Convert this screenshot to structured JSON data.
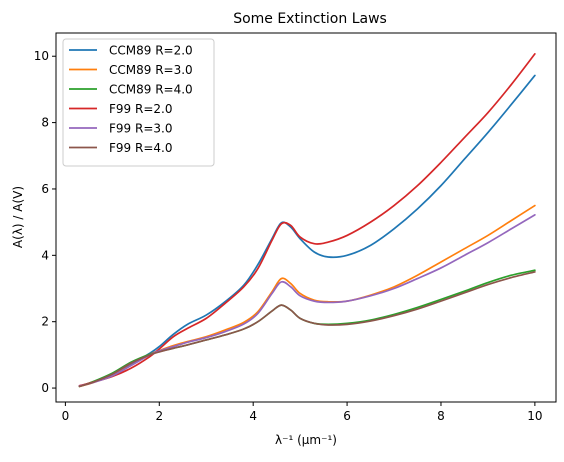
{
  "chart_data": {
    "type": "line",
    "title": "Some Extinction Laws",
    "xlabel": "λ⁻¹ (μm⁻¹)",
    "ylabel": "A(λ) / A(V)",
    "xlim": [
      -0.2,
      10.45
    ],
    "ylim": [
      -0.42,
      10.7
    ],
    "xticks": [
      0,
      2,
      4,
      6,
      8,
      10
    ],
    "yticks": [
      0,
      2,
      4,
      6,
      8,
      10
    ],
    "grid": false,
    "legend_position": "upper-left",
    "x": [
      0.3,
      0.6,
      1.0,
      1.4,
      1.8,
      2.0,
      2.3,
      2.6,
      3.0,
      3.4,
      3.8,
      4.1,
      4.4,
      4.6,
      4.8,
      5.0,
      5.3,
      5.6,
      6.0,
      6.5,
      7.0,
      7.5,
      8.0,
      8.5,
      9.0,
      9.5,
      10.0
    ],
    "series": [
      {
        "name": "CCM89 R=2.0",
        "color": "#1f77b4",
        "values": [
          0.06,
          0.18,
          0.4,
          0.72,
          1.05,
          1.25,
          1.62,
          1.92,
          2.2,
          2.6,
          3.1,
          3.72,
          4.5,
          4.98,
          4.85,
          4.5,
          4.1,
          3.95,
          4.0,
          4.3,
          4.8,
          5.4,
          6.1,
          6.9,
          7.7,
          8.55,
          9.42
        ]
      },
      {
        "name": "CCM89 R=3.0",
        "color": "#ff7f0e",
        "values": [
          0.05,
          0.17,
          0.4,
          0.75,
          1.02,
          1.13,
          1.28,
          1.4,
          1.55,
          1.75,
          1.98,
          2.3,
          2.9,
          3.3,
          3.15,
          2.85,
          2.65,
          2.6,
          2.62,
          2.8,
          3.05,
          3.4,
          3.8,
          4.2,
          4.6,
          5.05,
          5.5
        ]
      },
      {
        "name": "CCM89 R=4.0",
        "color": "#2ca02c",
        "values": [
          0.05,
          0.2,
          0.45,
          0.78,
          1.02,
          1.1,
          1.2,
          1.3,
          1.45,
          1.6,
          1.78,
          2.0,
          2.32,
          2.5,
          2.35,
          2.1,
          1.95,
          1.92,
          1.95,
          2.05,
          2.22,
          2.43,
          2.67,
          2.92,
          3.18,
          3.4,
          3.55
        ]
      },
      {
        "name": "F99 R=2.0",
        "color": "#d62728",
        "values": [
          0.07,
          0.18,
          0.35,
          0.6,
          0.95,
          1.18,
          1.55,
          1.8,
          2.1,
          2.55,
          3.05,
          3.6,
          4.45,
          4.95,
          4.9,
          4.55,
          4.35,
          4.4,
          4.6,
          5.0,
          5.5,
          6.1,
          6.8,
          7.55,
          8.3,
          9.15,
          10.07
        ]
      },
      {
        "name": "F99 R=3.0",
        "color": "#9467bd",
        "values": [
          0.06,
          0.17,
          0.37,
          0.68,
          1.0,
          1.12,
          1.25,
          1.38,
          1.52,
          1.7,
          1.93,
          2.25,
          2.85,
          3.2,
          3.05,
          2.78,
          2.62,
          2.58,
          2.62,
          2.78,
          3.0,
          3.3,
          3.62,
          4.0,
          4.38,
          4.8,
          5.22
        ]
      },
      {
        "name": "F99 R=4.0",
        "color": "#8c564b",
        "values": [
          0.05,
          0.18,
          0.42,
          0.75,
          1.0,
          1.09,
          1.2,
          1.3,
          1.45,
          1.6,
          1.78,
          2.0,
          2.32,
          2.5,
          2.35,
          2.1,
          1.95,
          1.9,
          1.92,
          2.02,
          2.18,
          2.38,
          2.62,
          2.87,
          3.12,
          3.33,
          3.5
        ]
      }
    ]
  }
}
